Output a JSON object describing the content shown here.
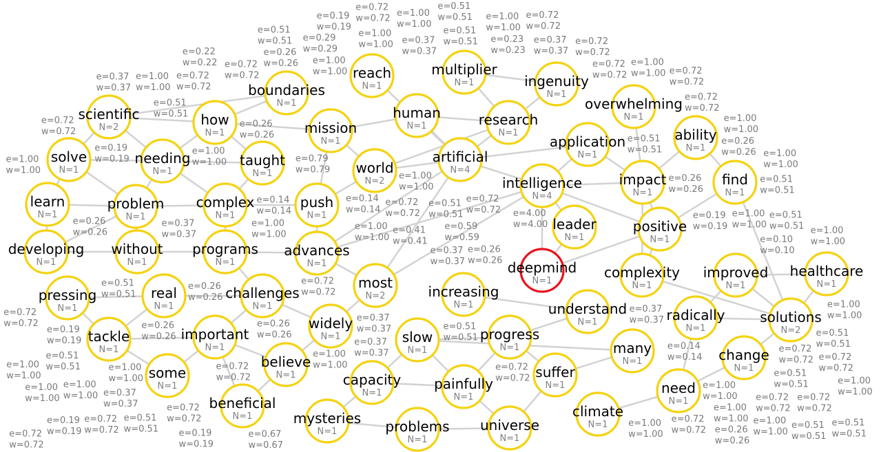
{
  "colors": {
    "node_border": "#f5d20f",
    "focus_border": "#e8121c",
    "edge": "#d2d2d2",
    "edge_label": "#7a7a7a"
  },
  "focus_node": "deepmind",
  "nodes": [
    {
      "id": "reach",
      "n": "N=1"
    },
    {
      "id": "multiplier",
      "n": "N=1"
    },
    {
      "id": "ingenuity",
      "n": "N=1"
    },
    {
      "id": "overwhelming",
      "n": "N=1"
    },
    {
      "id": "ability",
      "n": "N=1"
    },
    {
      "id": "boundaries",
      "n": "N=1"
    },
    {
      "id": "how",
      "n": "N=1"
    },
    {
      "id": "mission",
      "n": "N=1"
    },
    {
      "id": "human",
      "n": "N=1"
    },
    {
      "id": "research",
      "n": "N=1"
    },
    {
      "id": "application",
      "n": "N=1"
    },
    {
      "id": "scientific",
      "n": "N=2"
    },
    {
      "id": "solve",
      "n": "N=1"
    },
    {
      "id": "needing",
      "n": "N=1"
    },
    {
      "id": "taught",
      "n": "N=1"
    },
    {
      "id": "world",
      "n": "N=2"
    },
    {
      "id": "artificial",
      "n": "N=4"
    },
    {
      "id": "intelligence",
      "n": "N=4"
    },
    {
      "id": "impact",
      "n": "N=1"
    },
    {
      "id": "find",
      "n": "N=1"
    },
    {
      "id": "learn",
      "n": "N=1"
    },
    {
      "id": "problem",
      "n": "N=1"
    },
    {
      "id": "complex",
      "n": "N=1"
    },
    {
      "id": "push",
      "n": "N=1"
    },
    {
      "id": "leader",
      "n": "N=1"
    },
    {
      "id": "positive",
      "n": "N=1"
    },
    {
      "id": "developing",
      "n": "N=1"
    },
    {
      "id": "without",
      "n": "N=1"
    },
    {
      "id": "programs",
      "n": "N=1"
    },
    {
      "id": "advances",
      "n": "N=1"
    },
    {
      "id": "deepmind",
      "n": "N=1"
    },
    {
      "id": "complexity",
      "n": "N=1"
    },
    {
      "id": "improved",
      "n": "N=1"
    },
    {
      "id": "healthcare",
      "n": "N=1"
    },
    {
      "id": "pressing",
      "n": "N=1"
    },
    {
      "id": "real",
      "n": "N=1"
    },
    {
      "id": "challenges",
      "n": "N=1"
    },
    {
      "id": "most",
      "n": "N=2"
    },
    {
      "id": "increasing",
      "n": "N=1"
    },
    {
      "id": "understand",
      "n": "N=1"
    },
    {
      "id": "radically",
      "n": "N=1"
    },
    {
      "id": "solutions",
      "n": "N=2"
    },
    {
      "id": "tackle",
      "n": "N=1"
    },
    {
      "id": "important",
      "n": "N=1"
    },
    {
      "id": "widely",
      "n": "N=1"
    },
    {
      "id": "slow",
      "n": "N=1"
    },
    {
      "id": "progress",
      "n": "N=1"
    },
    {
      "id": "many",
      "n": "N=1"
    },
    {
      "id": "change",
      "n": "N=1"
    },
    {
      "id": "some",
      "n": "N=1"
    },
    {
      "id": "believe",
      "n": "N=1"
    },
    {
      "id": "capacity",
      "n": "N=1"
    },
    {
      "id": "painfully",
      "n": "N=1"
    },
    {
      "id": "suffer",
      "n": "N=1"
    },
    {
      "id": "need",
      "n": "N=1"
    },
    {
      "id": "beneficial",
      "n": "N=1"
    },
    {
      "id": "mysteries",
      "n": "N=1"
    },
    {
      "id": "problems",
      "n": "N=1"
    },
    {
      "id": "universe",
      "n": "N=1"
    },
    {
      "id": "climate",
      "n": "N=1"
    }
  ],
  "edges": [
    {
      "s": "scientific",
      "t": "boundaries",
      "e": "e=0.51",
      "w": "w=0.51"
    },
    {
      "s": "scientific",
      "t": "solve",
      "e": "e=0.19",
      "w": "w=0.19"
    },
    {
      "s": "scientific",
      "t": "how",
      "e": "e=1.00",
      "w": "w=1.00"
    },
    {
      "s": "scientific",
      "t": "needing",
      "e": "e=0.37",
      "w": "w=0.37"
    },
    {
      "s": "solve",
      "t": "learn",
      "e": "e=1.00",
      "w": "w=1.00"
    },
    {
      "s": "solve",
      "t": "needing",
      "e": "e=0.26",
      "w": "w=0.26"
    },
    {
      "s": "solve",
      "t": "problem",
      "e": "e=0.72",
      "w": "w=0.72"
    },
    {
      "s": "learn",
      "t": "problem",
      "e": "e=0.51",
      "w": "w=0.51"
    },
    {
      "s": "learn",
      "t": "developing",
      "e": "e=0.72",
      "w": "w=0.72"
    },
    {
      "s": "developing",
      "t": "without",
      "e": "e=0.19",
      "w": "w=0.19"
    },
    {
      "s": "developing",
      "t": "problem",
      "e": "e=0.37",
      "w": "w=0.37"
    },
    {
      "s": "problem",
      "t": "needing",
      "e": "e=1.00",
      "w": "w=1.00"
    },
    {
      "s": "problem",
      "t": "complex",
      "e": "e=0.14",
      "w": "w=0.14"
    },
    {
      "s": "problem",
      "t": "without",
      "e": "e=0.26",
      "w": "w=0.26"
    },
    {
      "s": "needing",
      "t": "how",
      "e": "e=0.72",
      "w": "w=0.72"
    },
    {
      "s": "needing",
      "t": "taught",
      "e": "e=0.26",
      "w": "w=0.26"
    },
    {
      "s": "needing",
      "t": "complex",
      "e": "e=1.00",
      "w": "w=1.00"
    },
    {
      "s": "how",
      "t": "mission",
      "e": "e=0.79",
      "w": "w=0.79"
    },
    {
      "s": "how",
      "t": "boundaries",
      "e": "e=0.72",
      "w": "w=0.72"
    },
    {
      "s": "how",
      "t": "taught",
      "e": "e=0.22",
      "w": "w=0.22"
    },
    {
      "s": "taught",
      "t": "complex",
      "e": "e=0.14",
      "w": "w=0.14"
    },
    {
      "s": "complex",
      "t": "programs",
      "e": "e=0.72",
      "w": "w=0.72"
    },
    {
      "s": "complex",
      "t": "push",
      "e": "e=1.00",
      "w": "w=1.00"
    },
    {
      "s": "programs",
      "t": "without",
      "e": "e=0.26",
      "w": "w=0.26"
    },
    {
      "s": "programs",
      "t": "advances",
      "e": "e=0.26",
      "w": "w=0.26"
    },
    {
      "s": "programs",
      "t": "challenges",
      "e": "e=0.72",
      "w": "w=0.72"
    },
    {
      "s": "push",
      "t": "world",
      "e": "e=0.72",
      "w": "w=0.72"
    },
    {
      "s": "push",
      "t": "advances",
      "e": "e=0.41",
      "w": "w=0.41"
    },
    {
      "s": "push",
      "t": "mission",
      "e": "e=1.00",
      "w": "w=1.00"
    },
    {
      "s": "mission",
      "t": "human",
      "e": "e=1.00",
      "w": "w=1.00"
    },
    {
      "s": "mission",
      "t": "world",
      "e": "e=0.51",
      "w": "w=0.51"
    },
    {
      "s": "world",
      "t": "artificial",
      "e": "e=0.72",
      "w": "w=0.72"
    },
    {
      "s": "world",
      "t": "research",
      "e": "e=0.59",
      "w": "w=0.59"
    },
    {
      "s": "human",
      "t": "artificial",
      "e": "e=0.37",
      "w": "w=0.37"
    },
    {
      "s": "human",
      "t": "research",
      "e": "e=0.51",
      "w": "w=0.51"
    },
    {
      "s": "artificial",
      "t": "intelligence",
      "e": "e=4.00",
      "w": "w=4.00"
    },
    {
      "s": "artificial",
      "t": "research",
      "e": "e=0.23",
      "w": "w=0.23"
    },
    {
      "s": "research",
      "t": "multiplier",
      "e": "e=1.00",
      "w": "w=1.00"
    },
    {
      "s": "research",
      "t": "ingenuity",
      "e": "e=0.37",
      "w": "w=0.37"
    },
    {
      "s": "multiplier",
      "t": "ingenuity",
      "e": "e=0.72",
      "w": "w=0.72"
    },
    {
      "s": "reach",
      "t": "artificial",
      "e": "e=1.00",
      "w": "w=1.00"
    },
    {
      "s": "artificial",
      "t": "application",
      "e": "e=0.26",
      "w": "w=0.26"
    },
    {
      "s": "intelligence",
      "t": "application",
      "e": "e=0.51",
      "w": "w=0.51"
    },
    {
      "s": "intelligence",
      "t": "leader",
      "e": "e=0.37",
      "w": "w=0.37"
    },
    {
      "s": "intelligence",
      "t": "deepmind",
      "e": "e=0.51",
      "w": "w=0.51"
    },
    {
      "s": "intelligence",
      "t": "impact",
      "e": "e=0.26",
      "w": "w=0.26"
    },
    {
      "s": "intelligence",
      "t": "positive",
      "e": "e=0.19",
      "w": "w=0.19"
    },
    {
      "s": "leader",
      "t": "deepmind",
      "e": "e=0.72",
      "w": "w=0.72"
    },
    {
      "s": "deepmind",
      "t": "positive",
      "e": "e=0.14",
      "w": "w=0.14"
    },
    {
      "s": "positive",
      "t": "impact",
      "e": "e=1.00",
      "w": "w=1.00"
    },
    {
      "s": "positive",
      "t": "complexity",
      "e": "e=0.10",
      "w": "w=0.10"
    },
    {
      "s": "impact",
      "t": "complexity",
      "e": "e=0.26",
      "w": "w=0.26"
    },
    {
      "s": "application",
      "t": "impact",
      "e": "e=0.72",
      "w": "w=0.72"
    },
    {
      "s": "overwhelming",
      "t": "impact",
      "e": "e=1.00",
      "w": "w=1.00"
    },
    {
      "s": "ability",
      "t": "find",
      "e": "e=1.00",
      "w": "w=1.00"
    },
    {
      "s": "find",
      "t": "positive",
      "e": "e=0.51",
      "w": "w=0.51"
    },
    {
      "s": "ability",
      "t": "impact",
      "e": "e=0.72",
      "w": "w=0.72"
    },
    {
      "s": "find",
      "t": "solutions",
      "e": "e=0.51",
      "w": "w=0.51"
    },
    {
      "s": "improved",
      "t": "healthcare",
      "e": "e=1.00",
      "w": "w=1.00"
    },
    {
      "s": "improved",
      "t": "solutions",
      "e": "e=0.72",
      "w": "w=0.72"
    },
    {
      "s": "complexity",
      "t": "solutions",
      "e": "e=0.37",
      "w": "w=0.37"
    },
    {
      "s": "healthcare",
      "t": "solutions",
      "e": "e=1.00",
      "w": "w=1.00"
    },
    {
      "s": "radically",
      "t": "solutions",
      "e": "e=0.51",
      "w": "w=0.51"
    },
    {
      "s": "radically",
      "t": "need",
      "e": "e=1.00",
      "w": "w=1.00"
    },
    {
      "s": "need",
      "t": "change",
      "e": "e=1.00",
      "w": "w=1.00"
    },
    {
      "s": "change",
      "t": "solutions",
      "e": "e=0.51",
      "w": "w=0.51"
    },
    {
      "s": "need",
      "t": "climate",
      "e": "e=1.00",
      "w": "w=1.00"
    },
    {
      "s": "radically",
      "t": "improved",
      "e": "e=0.72",
      "w": "w=0.72"
    },
    {
      "s": "pressing",
      "t": "real",
      "e": "e=1.00",
      "w": "w=1.00"
    },
    {
      "s": "pressing",
      "t": "tackle",
      "e": "e=0.51",
      "w": "w=0.51"
    },
    {
      "s": "real",
      "t": "challenges",
      "e": "e=0.72",
      "w": "w=0.72"
    },
    {
      "s": "real",
      "t": "tackle",
      "e": "e=0.37",
      "w": "w=0.37"
    },
    {
      "s": "tackle",
      "t": "important",
      "e": "e=0.51",
      "w": "w=0.51"
    },
    {
      "s": "tackle",
      "t": "some",
      "e": "e=1.00",
      "w": "w=1.00"
    },
    {
      "s": "some",
      "t": "important",
      "e": "e=0.19",
      "w": "w=0.19"
    },
    {
      "s": "important",
      "t": "challenges",
      "e": "e=0.67",
      "w": "w=0.67"
    },
    {
      "s": "important",
      "t": "believe",
      "e": "e=0.37",
      "w": "w=0.37"
    },
    {
      "s": "important",
      "t": "beneficial",
      "e": "e=0.72",
      "w": "w=0.72"
    },
    {
      "s": "beneficial",
      "t": "believe",
      "e": "e=0.19",
      "w": "w=0.19"
    },
    {
      "s": "believe",
      "t": "widely",
      "e": "e=1.00",
      "w": "w=1.00"
    },
    {
      "s": "widely",
      "t": "challenges",
      "e": "e=0.26",
      "w": "w=0.26"
    },
    {
      "s": "widely",
      "t": "most",
      "e": "e=0.29",
      "w": "w=0.29"
    },
    {
      "s": "most",
      "t": "advances",
      "e": "e=0.37",
      "w": "w=0.37"
    },
    {
      "s": "most",
      "t": "artificial",
      "e": "e=1.00",
      "w": "w=1.00"
    },
    {
      "s": "most",
      "t": "intelligence",
      "e": "e=0.72",
      "w": "w=0.72"
    },
    {
      "s": "advances",
      "t": "artificial",
      "e": "e=0.19",
      "w": "w=0.19"
    },
    {
      "s": "advances",
      "t": "intelligence",
      "e": "e=0.51",
      "w": "w=0.51"
    },
    {
      "s": "increasing",
      "t": "understand",
      "e": "e=0.72",
      "w": "w=0.72"
    },
    {
      "s": "understand",
      "t": "progress",
      "e": "e=0.26",
      "w": "w=0.26"
    },
    {
      "s": "progress",
      "t": "slow",
      "e": "e=1.00",
      "w": "w=1.00"
    },
    {
      "s": "progress",
      "t": "painfully",
      "e": "e=0.72",
      "w": "w=0.72"
    },
    {
      "s": "progress",
      "t": "suffer",
      "e": "e=0.51",
      "w": "w=0.51"
    },
    {
      "s": "suffer",
      "t": "many",
      "e": "e=0.72",
      "w": "w=0.72"
    },
    {
      "s": "slow",
      "t": "painfully",
      "e": "e=1.00",
      "w": "w=1.00"
    },
    {
      "s": "slow",
      "t": "capacity",
      "e": "e=0.51",
      "w": "w=0.51"
    },
    {
      "s": "capacity",
      "t": "mysteries",
      "e": "e=0.72",
      "w": "w=0.72"
    },
    {
      "s": "mysteries",
      "t": "problems",
      "e": "e=1.00",
      "w": "w=1.00"
    },
    {
      "s": "problems",
      "t": "universe",
      "e": "e=0.51",
      "w": "w=0.51"
    },
    {
      "s": "universe",
      "t": "painfully",
      "e": "e=1.00",
      "w": "w=1.00"
    },
    {
      "s": "painfully",
      "t": "capacity",
      "e": "e=0.72",
      "w": "w=0.72"
    },
    {
      "s": "suffer",
      "t": "universe",
      "e": "e=1.00",
      "w": "w=1.00"
    },
    {
      "s": "many",
      "t": "slow",
      "e": "e=0.72",
      "w": "w=0.72"
    }
  ]
}
